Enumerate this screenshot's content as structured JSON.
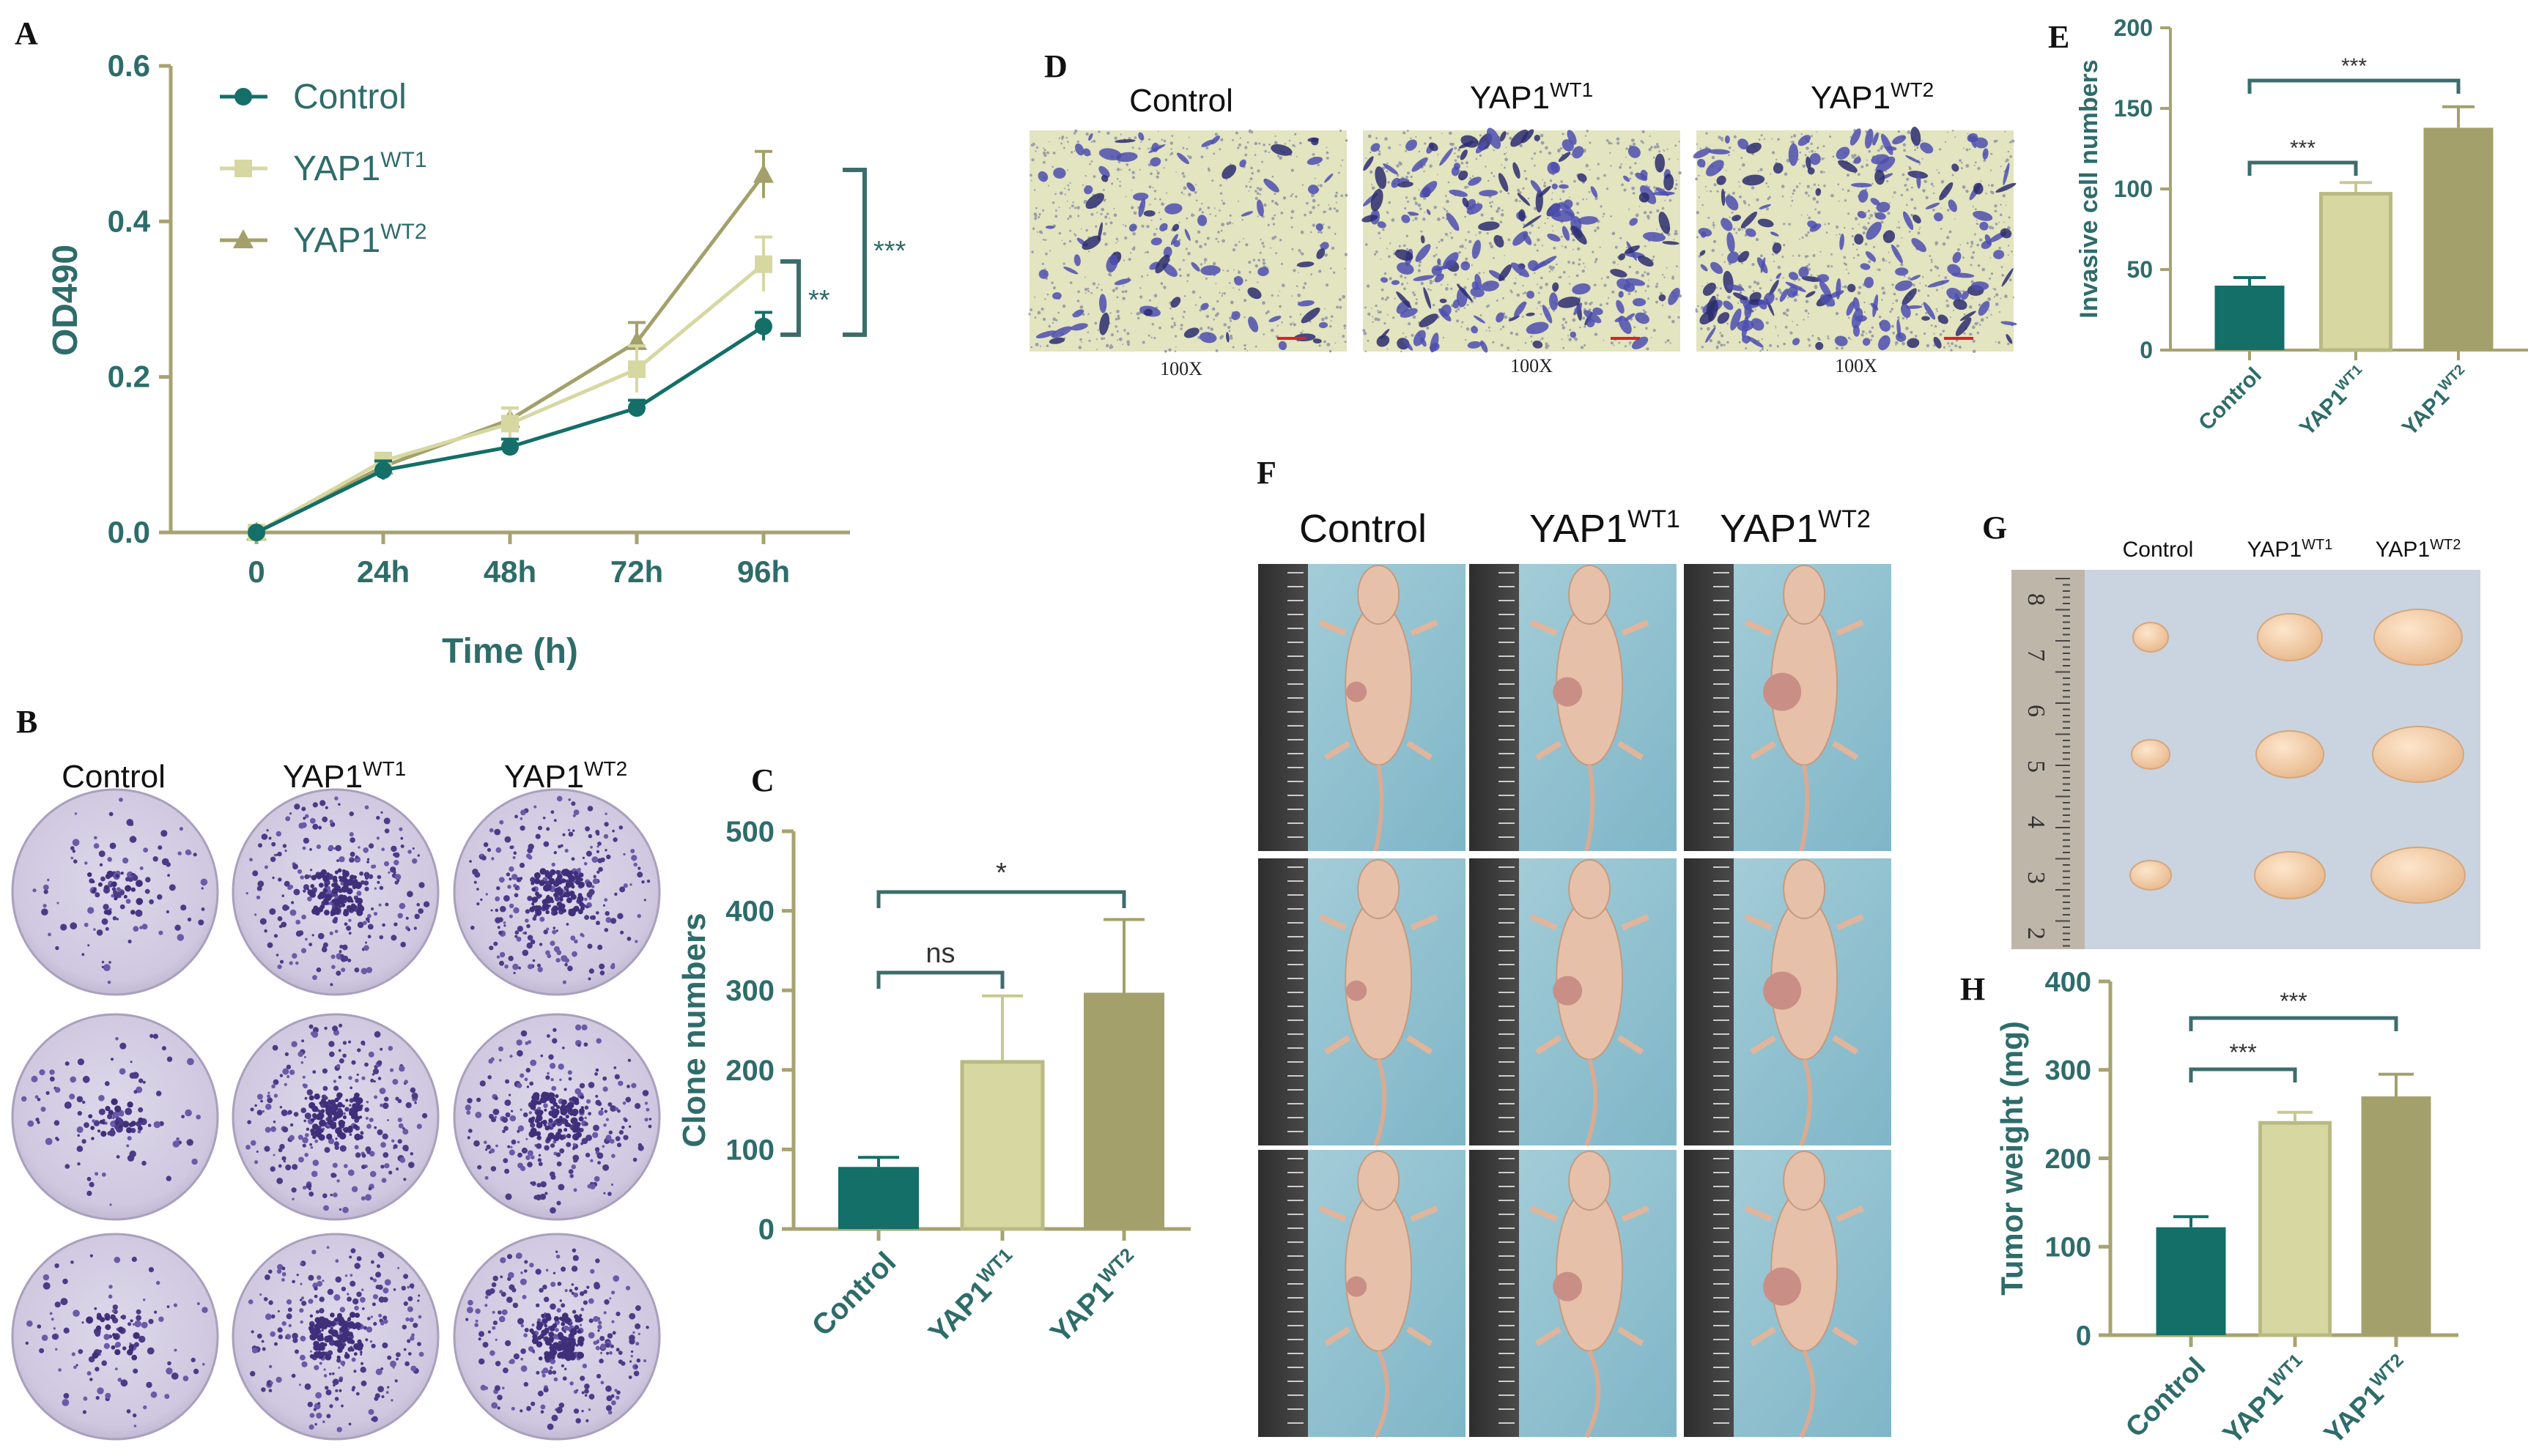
{
  "figure": {
    "panel_letters": [
      "A",
      "B",
      "C",
      "D",
      "E",
      "F",
      "G",
      "H"
    ],
    "colors": {
      "control": "#136f68",
      "wt1": "#d7d7a2",
      "wt2": "#a4a06b",
      "axis": "#a7a370",
      "text": "#2e6c6a",
      "bracket": "#3b6d6b"
    }
  },
  "panels": {
    "B": {
      "groups": [
        "Control",
        "YAP1",
        "YAP1"
      ],
      "sups": [
        "",
        "WT1",
        "WT2"
      ]
    },
    "D": {
      "groups": [
        "Control",
        "YAP1",
        "YAP1"
      ],
      "sups": [
        "",
        "WT1",
        "WT2"
      ],
      "magnification": [
        "100X",
        "100X",
        "100X"
      ]
    },
    "F": {
      "groups": [
        "Control",
        "YAP1",
        "YAP1"
      ],
      "sups": [
        "",
        "WT1",
        "WT2"
      ]
    },
    "G": {
      "groups": [
        "Control",
        "YAP1",
        "YAP1"
      ],
      "sups": [
        "",
        "WT1",
        "WT2"
      ],
      "ruler_marks": [
        "8",
        "7",
        "6",
        "5",
        "4",
        "3",
        "2"
      ]
    }
  },
  "chart_data": [
    {
      "id": "A",
      "type": "line",
      "title": "",
      "xlabel": "Time (h)",
      "ylabel": "OD490",
      "categories": [
        "0",
        "24h",
        "48h",
        "72h",
        "96h"
      ],
      "ylim": [
        0,
        0.6
      ],
      "yticks": [
        "0.0",
        "0.2",
        "0.4",
        "0.6"
      ],
      "series": [
        {
          "name": "Control",
          "sup": "",
          "marker": "circle",
          "values": [
            0.0,
            0.08,
            0.11,
            0.16,
            0.265
          ],
          "errors": [
            0.0,
            0.012,
            0.01,
            0.01,
            0.018
          ]
        },
        {
          "name": "YAP1",
          "sup": "WT1",
          "marker": "square",
          "values": [
            0.0,
            0.092,
            0.14,
            0.21,
            0.345
          ],
          "errors": [
            0.0,
            0.01,
            0.02,
            0.03,
            0.035
          ]
        },
        {
          "name": "YAP1",
          "sup": "WT2",
          "marker": "triangle",
          "values": [
            0.0,
            0.085,
            0.145,
            0.245,
            0.46
          ],
          "errors": [
            0.0,
            0.01,
            0.015,
            0.025,
            0.03
          ]
        }
      ],
      "significance": [
        {
          "label": "**"
        },
        {
          "label": "***"
        }
      ]
    },
    {
      "id": "C",
      "type": "bar",
      "xlabel": "",
      "ylabel": "Clone numbers",
      "categories": [
        "Control",
        "YAP1",
        "YAP1"
      ],
      "sups": [
        "",
        "WT1",
        "WT2"
      ],
      "values": [
        78,
        210,
        297
      ],
      "errors": [
        12,
        83,
        92
      ],
      "ylim": [
        0,
        500
      ],
      "yticks": [
        "0",
        "100",
        "200",
        "300",
        "400",
        "500"
      ],
      "significance": [
        {
          "from": 0,
          "to": 1,
          "label": "ns"
        },
        {
          "from": 0,
          "to": 2,
          "label": "*"
        }
      ]
    },
    {
      "id": "E",
      "type": "bar",
      "xlabel": "",
      "ylabel": "Invasive cell numbers",
      "categories": [
        "Control",
        "YAP1",
        "YAP1"
      ],
      "sups": [
        "",
        "WT1",
        "WT2"
      ],
      "values": [
        40,
        97,
        138
      ],
      "errors": [
        5,
        7,
        13
      ],
      "ylim": [
        0,
        200
      ],
      "yticks": [
        "0",
        "50",
        "100",
        "150",
        "200"
      ],
      "significance": [
        {
          "from": 0,
          "to": 1,
          "label": "***"
        },
        {
          "from": 0,
          "to": 2,
          "label": "***"
        }
      ]
    },
    {
      "id": "H",
      "type": "bar",
      "xlabel": "",
      "ylabel": "Tumor weight (mg)",
      "categories": [
        "Control",
        "YAP1",
        "YAP1"
      ],
      "sups": [
        "",
        "WT1",
        "WT2"
      ],
      "values": [
        122,
        240,
        270
      ],
      "errors": [
        12,
        12,
        25
      ],
      "ylim": [
        0,
        400
      ],
      "yticks": [
        "0",
        "100",
        "200",
        "300",
        "400"
      ],
      "significance": [
        {
          "from": 0,
          "to": 1,
          "label": "***"
        },
        {
          "from": 0,
          "to": 2,
          "label": "***"
        }
      ]
    }
  ]
}
